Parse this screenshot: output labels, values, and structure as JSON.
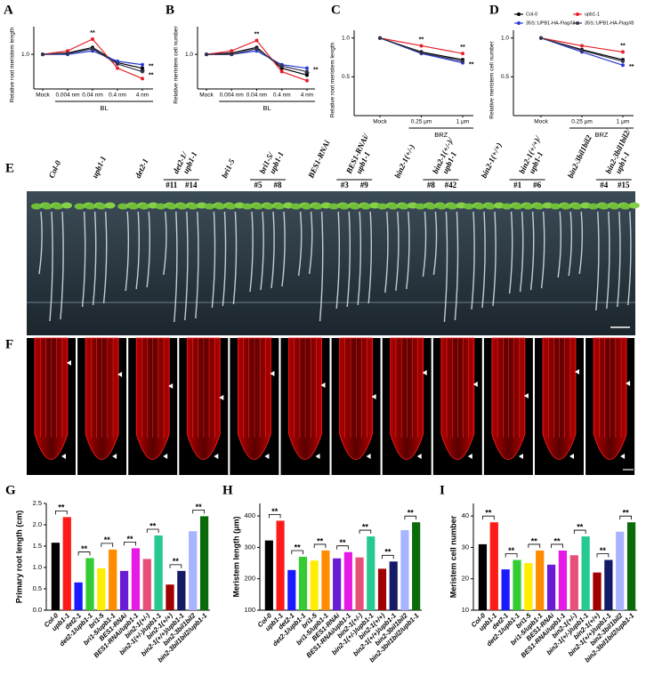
{
  "chart_data": [
    {
      "panel": "A",
      "type": "line",
      "ylabel": "Relative root meristem length",
      "xlabel": "BL",
      "categories": [
        "Mock",
        "0.004 nm",
        "0.04 nm",
        "0.4 nm",
        "4 nm"
      ],
      "ylim": [
        0.5,
        1.4
      ],
      "yticks": [
        {
          "value": 1,
          "label": "1.0"
        }
      ],
      "series": [
        {
          "color": "#000000",
          "values": [
            1,
            1.02,
            1.1,
            0.88,
            0.8
          ]
        },
        {
          "color": "#e8202a",
          "values": [
            1,
            1.05,
            1.22,
            0.8,
            0.65
          ],
          "significance": [
            null,
            null,
            "**",
            null,
            "**"
          ]
        },
        {
          "color": "#2b3bd6",
          "values": [
            1,
            1.0,
            1.05,
            0.9,
            0.85
          ],
          "significance": [
            null,
            null,
            null,
            null,
            "**"
          ]
        },
        {
          "color": "#33334d",
          "values": [
            1,
            1.01,
            1.08,
            0.86,
            0.75
          ],
          "significance": [
            null,
            null,
            null,
            null,
            "**"
          ]
        }
      ]
    },
    {
      "panel": "B",
      "type": "line",
      "ylabel": "Relative meristem cell number",
      "xlabel": "BL",
      "categories": [
        "Mock",
        "0.004 nm",
        "0.04 nm",
        "0.4 nm",
        "4 nm"
      ],
      "ylim": [
        0.5,
        1.4
      ],
      "yticks": [
        {
          "value": 1,
          "label": "1.0"
        }
      ],
      "series": [
        {
          "color": "#000000",
          "values": [
            1,
            1.02,
            1.1,
            0.8,
            0.7
          ]
        },
        {
          "color": "#e8202a",
          "values": [
            1,
            1.05,
            1.2,
            0.75,
            0.62
          ],
          "significance": [
            null,
            null,
            "**",
            null,
            "**"
          ]
        },
        {
          "color": "#2b3bd6",
          "values": [
            1,
            1.0,
            1.05,
            0.85,
            0.8
          ],
          "significance": [
            null,
            null,
            null,
            null,
            "**"
          ]
        },
        {
          "color": "#33334d",
          "values": [
            1,
            1.0,
            1.08,
            0.83,
            0.75
          ]
        }
      ]
    },
    {
      "panel": "C",
      "type": "line",
      "ylabel": "Relative root meristem length",
      "xlabel": "BRZ",
      "categories": [
        "Mock",
        "0.25 μm",
        "1 μm"
      ],
      "ylim": [
        0,
        1.1
      ],
      "yticks": [
        0.5,
        {
          "value": 1,
          "label": "1.0"
        }
      ],
      "series": [
        {
          "color": "#000000",
          "values": [
            1,
            0.82,
            0.72
          ]
        },
        {
          "color": "#e8202a",
          "values": [
            1,
            0.9,
            0.8
          ],
          "significance": [
            null,
            "**",
            "**"
          ]
        },
        {
          "color": "#2b3bd6",
          "values": [
            1,
            0.8,
            0.68
          ],
          "significance": [
            null,
            null,
            "**"
          ]
        },
        {
          "color": "#33334d",
          "values": [
            1,
            0.81,
            0.7
          ]
        }
      ]
    },
    {
      "panel": "D",
      "type": "line",
      "ylabel": "Relative meristem cell number",
      "xlabel": "BRZ",
      "categories": [
        "Mock",
        "0.25 μm",
        "1 μm"
      ],
      "ylim": [
        0,
        1.1
      ],
      "yticks": [
        0.5,
        {
          "value": 1,
          "label": "1.0"
        }
      ],
      "legend": "top",
      "series": [
        {
          "name": "Col-0",
          "color": "#000000",
          "values": [
            1,
            0.85,
            0.72
          ]
        },
        {
          "name": "upb1-1",
          "color": "#e8202a",
          "values": [
            1,
            0.9,
            0.82
          ],
          "significance": [
            null,
            null,
            "**"
          ]
        },
        {
          "name": "35S::UPB1-HA-Flag#3",
          "color": "#2b3bd6",
          "values": [
            1,
            0.82,
            0.65
          ],
          "significance": [
            null,
            null,
            "**"
          ]
        },
        {
          "name": "35S::UPB1-HA-Flag#8",
          "color": "#33334d",
          "values": [
            1,
            0.84,
            0.7
          ]
        }
      ]
    },
    {
      "panel": "G",
      "type": "bar",
      "ylabel": "Primary root length (cm)",
      "categories": [
        "Col-0",
        "upb1-1",
        "det2-1",
        "det2-1/upb1-1",
        "bri1-5",
        "bri1-5/upb1-1",
        "BES1-RNAi",
        "BES1-RNAi/upb1-1",
        "bin2-1(+/-)",
        "bin2-1(+/-)/upb1-1",
        "bin2-1(+/+)",
        "bin2-1(+/+)/upb1-1",
        "bin2-3bil1bil2",
        "bin2-3bil1bil2/upb1-1"
      ],
      "values": [
        1.58,
        2.18,
        0.65,
        1.22,
        0.98,
        1.42,
        0.92,
        1.45,
        1.2,
        1.75,
        0.6,
        0.92,
        1.85,
        2.2
      ],
      "colors": [
        "#000000",
        "#ff1a1a",
        "#1a1aff",
        "#33cc33",
        "#ffee00",
        "#ff8c00",
        "#6a1bd6",
        "#e619e6",
        "#e8507a",
        "#26c98f",
        "#a10000",
        "#141a66",
        "#a8b4ff",
        "#0b6b0b"
      ],
      "significance": [
        "**",
        "**",
        "**",
        "**",
        "**",
        "**",
        "**"
      ],
      "ylim": [
        0,
        2.5
      ],
      "yticks": [
        {
          "value": 0,
          "label": "0.0"
        },
        0.5,
        {
          "value": 1,
          "label": "1.0"
        },
        1.5,
        {
          "value": 2,
          "label": "2.0"
        },
        2.5
      ]
    },
    {
      "panel": "H",
      "type": "bar",
      "ylabel": "Meristem length (μm)",
      "categories": [
        "Col-0",
        "upb1-1",
        "det2-1",
        "det2-1/upb1-1",
        "bri1-5",
        "bri1-5/upb1-1",
        "BES1-RNAi",
        "BES1-RNAi/upb1-1",
        "bin2-1(+/-)",
        "bin2-1(+/-)/upb1-1",
        "bin2-1(+/+)",
        "bin2-1(+/+)/upb1-1",
        "bin2-3bil1bil2",
        "bin2-3bil1bil2/upb1-1"
      ],
      "values": [
        322,
        385,
        228,
        270,
        258,
        290,
        265,
        285,
        268,
        335,
        232,
        255,
        355,
        380
      ],
      "colors": [
        "#000000",
        "#ff1a1a",
        "#1a1aff",
        "#33cc33",
        "#ffee00",
        "#ff8c00",
        "#6a1bd6",
        "#e619e6",
        "#e8507a",
        "#26c98f",
        "#a10000",
        "#141a66",
        "#a8b4ff",
        "#0b6b0b"
      ],
      "significance": [
        "**",
        "**",
        "**",
        "**",
        "**",
        "**",
        "**"
      ],
      "ylim": [
        100,
        440
      ],
      "yticks": [
        100,
        200,
        300,
        400
      ]
    },
    {
      "panel": "I",
      "type": "bar",
      "ylabel": "Meristem cell number",
      "categories": [
        "Col-0",
        "upb1-1",
        "det2-1",
        "det2-1/upb1-1",
        "bri1-5",
        "bri1-5/upb1-1",
        "BES1-RNAi",
        "BES1-RNAi/upb1-1",
        "bin2-1(+/-)",
        "bin2-1(+/-)/upb1-1",
        "bin2-1(+/+)",
        "bin2-1(+/+)/upb1-1",
        "bin2-3bil1bil2",
        "bin2-3bil1bil2/upb1-1"
      ],
      "values": [
        31,
        38,
        23,
        26,
        25,
        29,
        24.5,
        29,
        27.5,
        33.5,
        22,
        26,
        35,
        38
      ],
      "colors": [
        "#000000",
        "#ff1a1a",
        "#1a1aff",
        "#33cc33",
        "#ffee00",
        "#ff8c00",
        "#6a1bd6",
        "#e619e6",
        "#e8507a",
        "#26c98f",
        "#a10000",
        "#141a66",
        "#a8b4ff",
        "#0b6b0b"
      ],
      "significance": [
        "**",
        "**",
        "**",
        "**",
        "**",
        "**",
        "**"
      ],
      "ylim": [
        10,
        44
      ],
      "yticks": [
        10,
        20,
        30,
        40
      ]
    }
  ],
  "panels": {
    "E": {
      "letter": "E",
      "groups": [
        {
          "name": [
            "Col-0"
          ]
        },
        {
          "name": [
            "upb1-1"
          ]
        },
        {
          "name": [
            "det2-1"
          ]
        },
        {
          "name": [
            "det2-1/",
            "upb1-1"
          ],
          "lines": [
            "#11",
            "#14"
          ]
        },
        {
          "name": [
            "bri1-5"
          ]
        },
        {
          "name": [
            "bri1-5/",
            "upb1-1"
          ],
          "lines": [
            "#5",
            "#8"
          ]
        },
        {
          "name": [
            "BES1-RNAi"
          ]
        },
        {
          "name": [
            "BES1-RNAi/",
            "upb1-1"
          ],
          "lines": [
            "#3",
            "#9"
          ]
        },
        {
          "name": [
            "bin2-1(+/-)"
          ]
        },
        {
          "name": [
            "bin2-1(+/-)/",
            "upb1-1"
          ],
          "lines": [
            "#8",
            "#42"
          ]
        },
        {
          "name": [
            "bin2-1(+/+)"
          ]
        },
        {
          "name": [
            "bin2-1(+/+)/",
            "upb1-1"
          ],
          "lines": [
            "#1",
            "#6"
          ]
        },
        {
          "name": [
            "bin2-3bil1bil2"
          ]
        },
        {
          "name": [
            "bin2-3bil1bil2/",
            "upb1-1"
          ],
          "lines": [
            "#4",
            "#15"
          ]
        }
      ]
    },
    "F": {
      "letter": "F"
    }
  }
}
